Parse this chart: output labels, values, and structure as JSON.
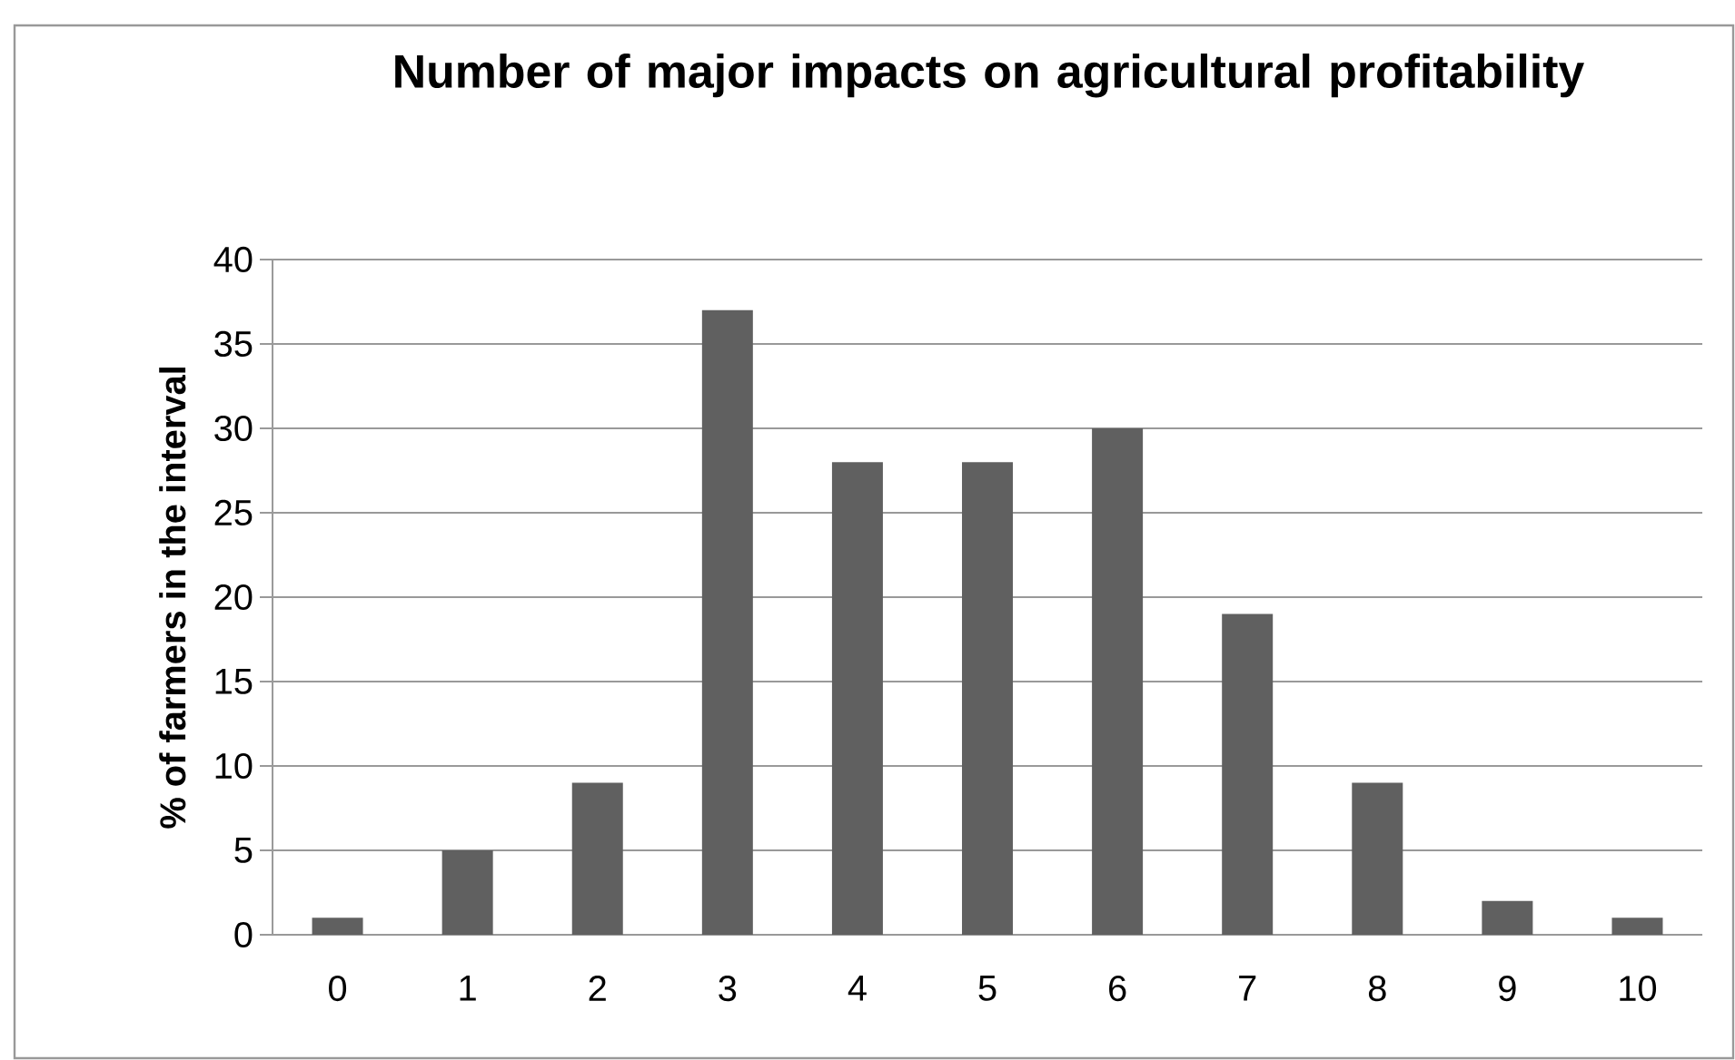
{
  "chart_data": {
    "type": "bar",
    "title": "Number of major impacts on agricultural profitability",
    "ylabel": "% of farmers in the interval",
    "categories": [
      "0",
      "1",
      "2",
      "3",
      "4",
      "5",
      "6",
      "7",
      "8",
      "9",
      "10"
    ],
    "values": [
      1,
      5,
      9,
      37,
      28,
      28,
      30,
      19,
      9,
      2,
      1
    ],
    "color": "#606060",
    "ylim": [
      0,
      40
    ],
    "yticks": [
      0,
      5,
      10,
      15,
      20,
      25,
      30,
      35,
      40
    ],
    "grid": "y"
  }
}
